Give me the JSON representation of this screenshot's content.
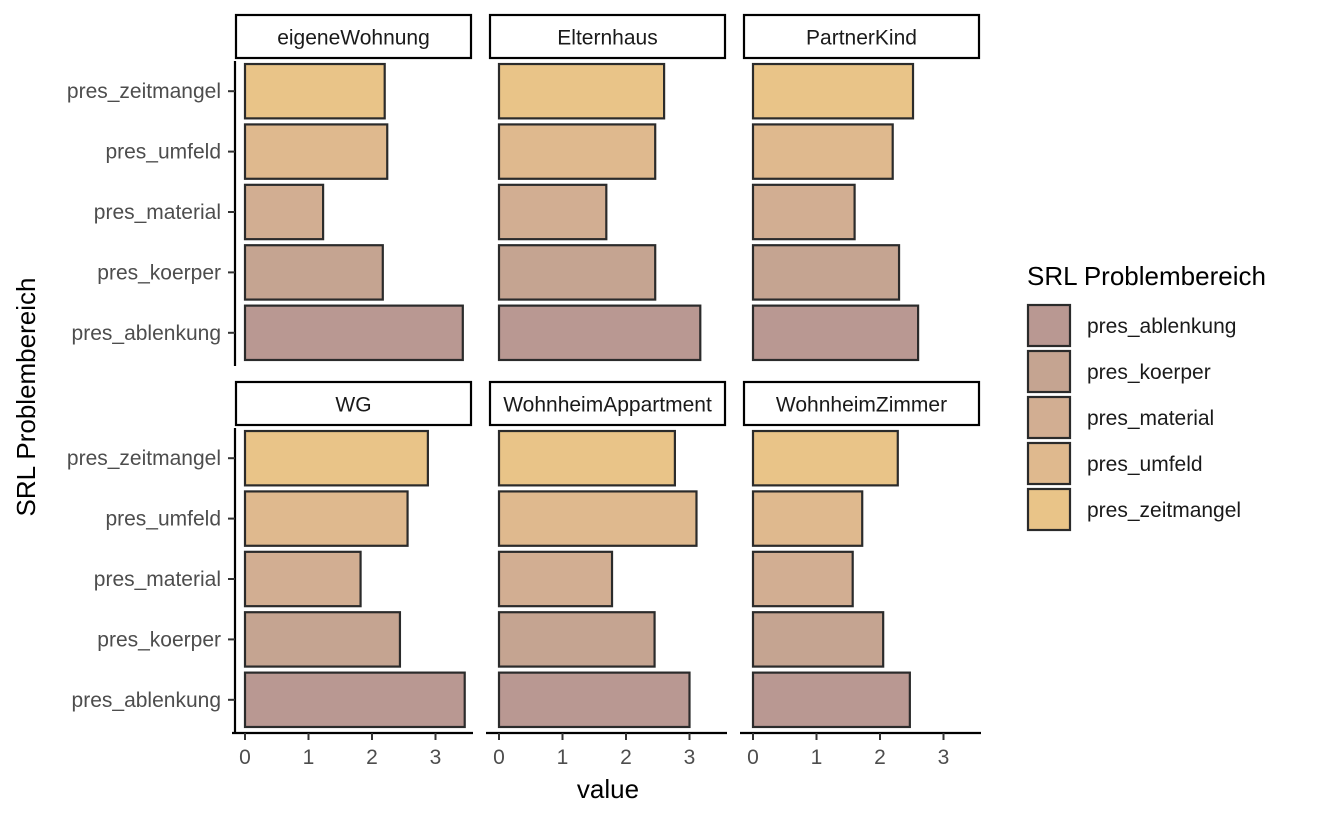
{
  "chart_data": {
    "type": "bar",
    "orientation": "horizontal",
    "facet_layout": "2x3",
    "xlabel": "value",
    "ylabel": "SRL Problembereich",
    "xlim": [
      0,
      3.6
    ],
    "x_ticks": [
      0,
      1,
      2,
      3
    ],
    "categories": [
      "pres_ablenkung",
      "pres_koerper",
      "pres_material",
      "pres_umfeld",
      "pres_zeitmangel"
    ],
    "colors": {
      "pres_ablenkung": "#b99892",
      "pres_koerper": "#c5a491",
      "pres_material": "#d2ae92",
      "pres_umfeld": "#dfb98e",
      "pres_zeitmangel": "#e9c488"
    },
    "legend": {
      "title": "SRL Problembereich",
      "position": "right",
      "entries": [
        "pres_ablenkung",
        "pres_koerper",
        "pres_material",
        "pres_umfeld",
        "pres_zeitmangel"
      ]
    },
    "grid": false,
    "panels": [
      {
        "name": "eigeneWohnung",
        "values": {
          "pres_ablenkung": 3.43,
          "pres_koerper": 2.17,
          "pres_material": 1.23,
          "pres_umfeld": 2.24,
          "pres_zeitmangel": 2.2
        }
      },
      {
        "name": "Elternhaus",
        "values": {
          "pres_ablenkung": 3.17,
          "pres_koerper": 2.46,
          "pres_material": 1.69,
          "pres_umfeld": 2.46,
          "pres_zeitmangel": 2.6
        }
      },
      {
        "name": "PartnerKind",
        "values": {
          "pres_ablenkung": 2.6,
          "pres_koerper": 2.3,
          "pres_material": 1.6,
          "pres_umfeld": 2.2,
          "pres_zeitmangel": 2.52
        }
      },
      {
        "name": "WG",
        "values": {
          "pres_ablenkung": 3.46,
          "pres_koerper": 2.44,
          "pres_material": 1.82,
          "pres_umfeld": 2.56,
          "pres_zeitmangel": 2.88
        }
      },
      {
        "name": "WohnheimAppartment",
        "values": {
          "pres_ablenkung": 3.0,
          "pres_koerper": 2.45,
          "pres_material": 1.78,
          "pres_umfeld": 3.11,
          "pres_zeitmangel": 2.77
        }
      },
      {
        "name": "WohnheimZimmer",
        "values": {
          "pres_ablenkung": 2.47,
          "pres_koerper": 2.05,
          "pres_material": 1.57,
          "pres_umfeld": 1.72,
          "pres_zeitmangel": 2.28
        }
      }
    ]
  }
}
